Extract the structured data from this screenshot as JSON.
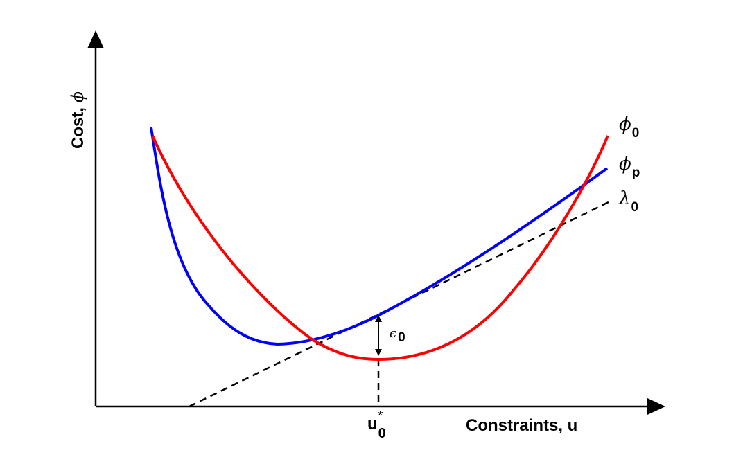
{
  "axes": {
    "y_title": "Cost, ",
    "y_symbol": "ϕ",
    "x_title": "Constraints, u"
  },
  "labels": {
    "phi0_symbol": "ϕ",
    "phi0_sub": "0",
    "phip_symbol": "ϕ",
    "phip_sub": "p",
    "lambda0_symbol": "λ",
    "lambda0_sub": "0",
    "eps_symbol": "ϵ",
    "eps_sub": "0",
    "u_main": "u",
    "u_sub": "0",
    "u_sup": "*"
  },
  "colors": {
    "phi0": "#ff0000",
    "phip": "#0000ff",
    "lambda0": "#000000",
    "axes": "#000000"
  }
}
